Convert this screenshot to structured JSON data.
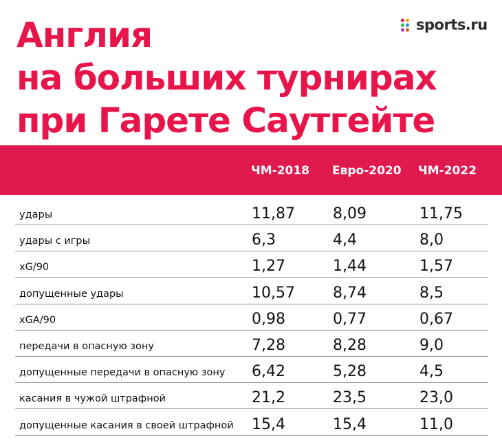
{
  "title_lines": [
    "Англия",
    "на больших турнирах",
    "при Гарете Саутгейте"
  ],
  "logo": {
    "text": "sports.ru",
    "dot_colors": [
      "#e01a4f",
      "#f7a600",
      "#2dbe60",
      "#2a8fd8",
      "#9b3fd1",
      "#f25c05"
    ]
  },
  "columns": [
    "ЧМ-2018",
    "Евро-2020",
    "ЧМ-2022"
  ],
  "rows": [
    {
      "label": "удары",
      "values": [
        "11,87",
        "8,09",
        "11,75"
      ]
    },
    {
      "label": "удары с игры",
      "values": [
        "6,3",
        "4,4",
        "8,0"
      ]
    },
    {
      "label": "xG/90",
      "values": [
        "1,27",
        "1,44",
        "1,57"
      ]
    },
    {
      "label": "допущенные удары",
      "values": [
        "10,57",
        "8,74",
        "8,5"
      ]
    },
    {
      "label": "xGA/90",
      "values": [
        "0,98",
        "0,77",
        "0,67"
      ]
    },
    {
      "label": "передачи в опасную зону",
      "values": [
        "7,28",
        "8,28",
        "9,0"
      ]
    },
    {
      "label": "допущенные передачи в опасную зону",
      "values": [
        "6,42",
        "5,28",
        "4,5"
      ]
    },
    {
      "label": "касания в чужой штрафной",
      "values": [
        "21,2",
        "23,5",
        "23,0"
      ]
    },
    {
      "label": "допущенные касания в своей штрафной",
      "values": [
        "15,4",
        "15,4",
        "11,0"
      ]
    }
  ],
  "colors": {
    "accent": "#e8154b",
    "band": "#e01a4f",
    "text": "#111111",
    "rule": "#9a9a9a"
  }
}
